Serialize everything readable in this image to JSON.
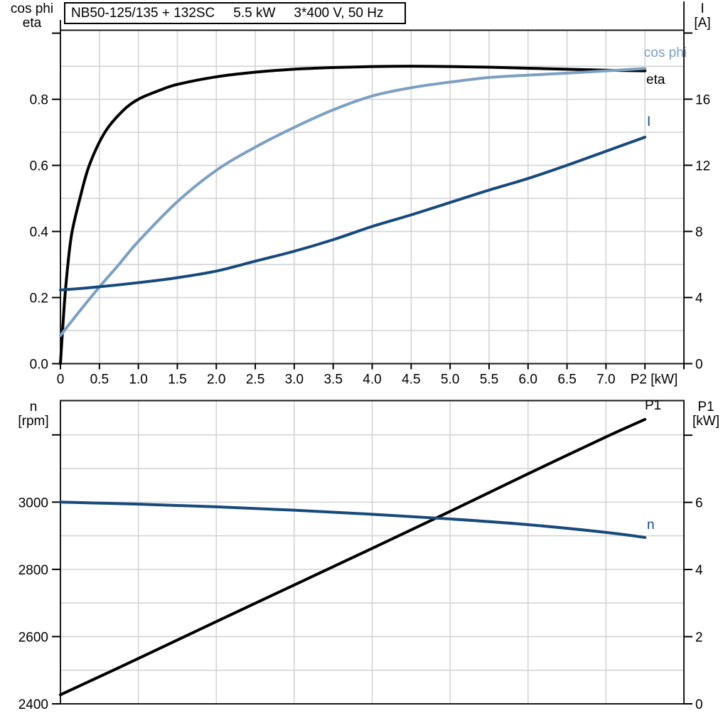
{
  "title_box": {
    "model": "NB50-125/135 + 132SC",
    "power": "5.5 kW",
    "supply": "3*400 V, 50 Hz"
  },
  "colors": {
    "black": "#000000",
    "dark_blue": "#174a7c",
    "light_blue": "#7da0c2",
    "grid": "#d4d4d4",
    "frame": "#1a1a1a"
  },
  "chart_data": [
    {
      "type": "line",
      "title": "NB50-125/135 + 132SC  5.5 kW  3*400 V, 50 Hz",
      "xlabel": "P2 [kW]",
      "ylabel_left_lines": [
        "cos phi",
        "eta"
      ],
      "ylabel_right_lines": [
        "I",
        "[A]"
      ],
      "xlim": [
        0,
        8
      ],
      "ylim_left": [
        0,
        1.009
      ],
      "ylim_right": [
        0,
        20.17
      ],
      "grid": "on",
      "x_grid": [
        0.5,
        1,
        1.5,
        2,
        2.5,
        3,
        3.5,
        4,
        4.5,
        5,
        5.5,
        6,
        6.5,
        7,
        7.5
      ],
      "x_ticks": [
        {
          "v": 0,
          "l": "0"
        },
        {
          "v": 0.5,
          "l": "0.5"
        },
        {
          "v": 1,
          "l": "1.0"
        },
        {
          "v": 1.5,
          "l": "1.5"
        },
        {
          "v": 2,
          "l": "2.0"
        },
        {
          "v": 2.5,
          "l": "2.5"
        },
        {
          "v": 3,
          "l": "3.0"
        },
        {
          "v": 3.5,
          "l": "3.5"
        },
        {
          "v": 4,
          "l": "4.0"
        },
        {
          "v": 4.5,
          "l": "4.5"
        },
        {
          "v": 5,
          "l": "5.0"
        },
        {
          "v": 5.5,
          "l": "5.5"
        },
        {
          "v": 6,
          "l": "6.0"
        },
        {
          "v": 6.5,
          "l": "6.5"
        },
        {
          "v": 7,
          "l": "7.0"
        },
        {
          "v": 7.5
        },
        {
          "v": 8
        }
      ],
      "left_grid": [
        0.1,
        0.2,
        0.3,
        0.4,
        0.5,
        0.6,
        0.7,
        0.8,
        0.9
      ],
      "left_ticks": [
        {
          "v": 0,
          "l": "0.0"
        },
        {
          "v": 0.2,
          "l": "0.2"
        },
        {
          "v": 0.4,
          "l": "0.4"
        },
        {
          "v": 0.6,
          "l": "0.6"
        },
        {
          "v": 0.8,
          "l": "0.8"
        },
        {
          "v": 1.0
        }
      ],
      "right_ticks": [
        {
          "v": 0,
          "l": "0"
        },
        {
          "v": 4,
          "l": "4"
        },
        {
          "v": 8,
          "l": "8"
        },
        {
          "v": 12,
          "l": "12"
        },
        {
          "v": 16,
          "l": "16"
        },
        {
          "v": 20
        }
      ],
      "series": [
        {
          "name": "eta",
          "label": "eta",
          "color": "black",
          "axis": "left",
          "width": 4,
          "points": [
            [
              0,
              0
            ],
            [
              0.05,
              0.18
            ],
            [
              0.1,
              0.31
            ],
            [
              0.15,
              0.4
            ],
            [
              0.25,
              0.5
            ],
            [
              0.37,
              0.6
            ],
            [
              0.57,
              0.7
            ],
            [
              0.8,
              0.765
            ],
            [
              1.0,
              0.8
            ],
            [
              1.25,
              0.825
            ],
            [
              1.5,
              0.845
            ],
            [
              2.0,
              0.868
            ],
            [
              2.5,
              0.882
            ],
            [
              3.0,
              0.891
            ],
            [
              3.5,
              0.896
            ],
            [
              4.0,
              0.899
            ],
            [
              4.5,
              0.9
            ],
            [
              5.0,
              0.899
            ],
            [
              5.5,
              0.897
            ],
            [
              6.0,
              0.894
            ],
            [
              6.5,
              0.891
            ],
            [
              7.0,
              0.888
            ],
            [
              7.5,
              0.886
            ]
          ]
        },
        {
          "name": "cos phi",
          "label": "cos phi",
          "color": "light_blue",
          "axis": "left",
          "width": 4,
          "points": [
            [
              0,
              0.085
            ],
            [
              0.25,
              0.16
            ],
            [
              0.5,
              0.232
            ],
            [
              0.75,
              0.3
            ],
            [
              1.0,
              0.37
            ],
            [
              1.5,
              0.49
            ],
            [
              2.0,
              0.585
            ],
            [
              2.5,
              0.655
            ],
            [
              3.0,
              0.715
            ],
            [
              3.5,
              0.768
            ],
            [
              4.0,
              0.81
            ],
            [
              4.5,
              0.835
            ],
            [
              5.0,
              0.852
            ],
            [
              5.5,
              0.866
            ],
            [
              6.0,
              0.873
            ],
            [
              6.5,
              0.879
            ],
            [
              7.0,
              0.886
            ],
            [
              7.5,
              0.893
            ]
          ]
        },
        {
          "name": "I",
          "label": "I",
          "color": "dark_blue",
          "axis": "right",
          "width": 4,
          "points": [
            [
              0,
              4.45
            ],
            [
              0.5,
              4.65
            ],
            [
              1.0,
              4.9
            ],
            [
              1.5,
              5.2
            ],
            [
              2.0,
              5.6
            ],
            [
              2.5,
              6.2
            ],
            [
              3.0,
              6.8
            ],
            [
              3.5,
              7.5
            ],
            [
              4.0,
              8.3
            ],
            [
              4.5,
              9.0
            ],
            [
              5.0,
              9.75
            ],
            [
              5.5,
              10.5
            ],
            [
              6.0,
              11.2
            ],
            [
              6.5,
              12.0
            ],
            [
              7.0,
              12.85
            ],
            [
              7.5,
              13.7
            ]
          ]
        }
      ]
    },
    {
      "type": "line",
      "title": "",
      "xlabel": "",
      "ylabel_left_lines": [
        "n",
        "[rpm]"
      ],
      "ylabel_right_lines": [
        "P1",
        "[kW]"
      ],
      "xlim": [
        0,
        8
      ],
      "ylim_left": [
        2400,
        3302
      ],
      "ylim_right": [
        0,
        9.03
      ],
      "grid": "on",
      "x_grid": [
        1,
        2,
        3,
        4,
        5,
        6,
        7
      ],
      "x_ticks": [],
      "left_grid": [
        2500,
        2600,
        2700,
        2800,
        2900,
        3000,
        3100,
        3200
      ],
      "left_ticks": [
        {
          "v": 2400,
          "l": "2400"
        },
        {
          "v": 2600,
          "l": "2600"
        },
        {
          "v": 2800,
          "l": "2800"
        },
        {
          "v": 3000,
          "l": "3000"
        },
        {
          "v": 3200
        }
      ],
      "right_ticks": [
        {
          "v": 0,
          "l": "0"
        },
        {
          "v": 2,
          "l": "2"
        },
        {
          "v": 4,
          "l": "4"
        },
        {
          "v": 6,
          "l": "6"
        },
        {
          "v": 8
        }
      ],
      "series": [
        {
          "name": "P1",
          "label": "P1",
          "color": "black",
          "axis": "right",
          "width": 4,
          "points": [
            [
              0,
              0.27
            ],
            [
              1,
              1.35
            ],
            [
              2,
              2.45
            ],
            [
              3,
              3.54
            ],
            [
              4,
              4.63
            ],
            [
              5,
              5.73
            ],
            [
              6,
              6.85
            ],
            [
              7,
              7.95
            ],
            [
              7.5,
              8.47
            ]
          ]
        },
        {
          "name": "n",
          "label": "n",
          "color": "dark_blue",
          "axis": "left",
          "width": 4,
          "points": [
            [
              0,
              3000
            ],
            [
              1,
              2994
            ],
            [
              2,
              2986
            ],
            [
              3,
              2976
            ],
            [
              4,
              2964
            ],
            [
              5,
              2950
            ],
            [
              6,
              2933
            ],
            [
              7,
              2910
            ],
            [
              7.5,
              2895
            ]
          ]
        }
      ]
    }
  ]
}
